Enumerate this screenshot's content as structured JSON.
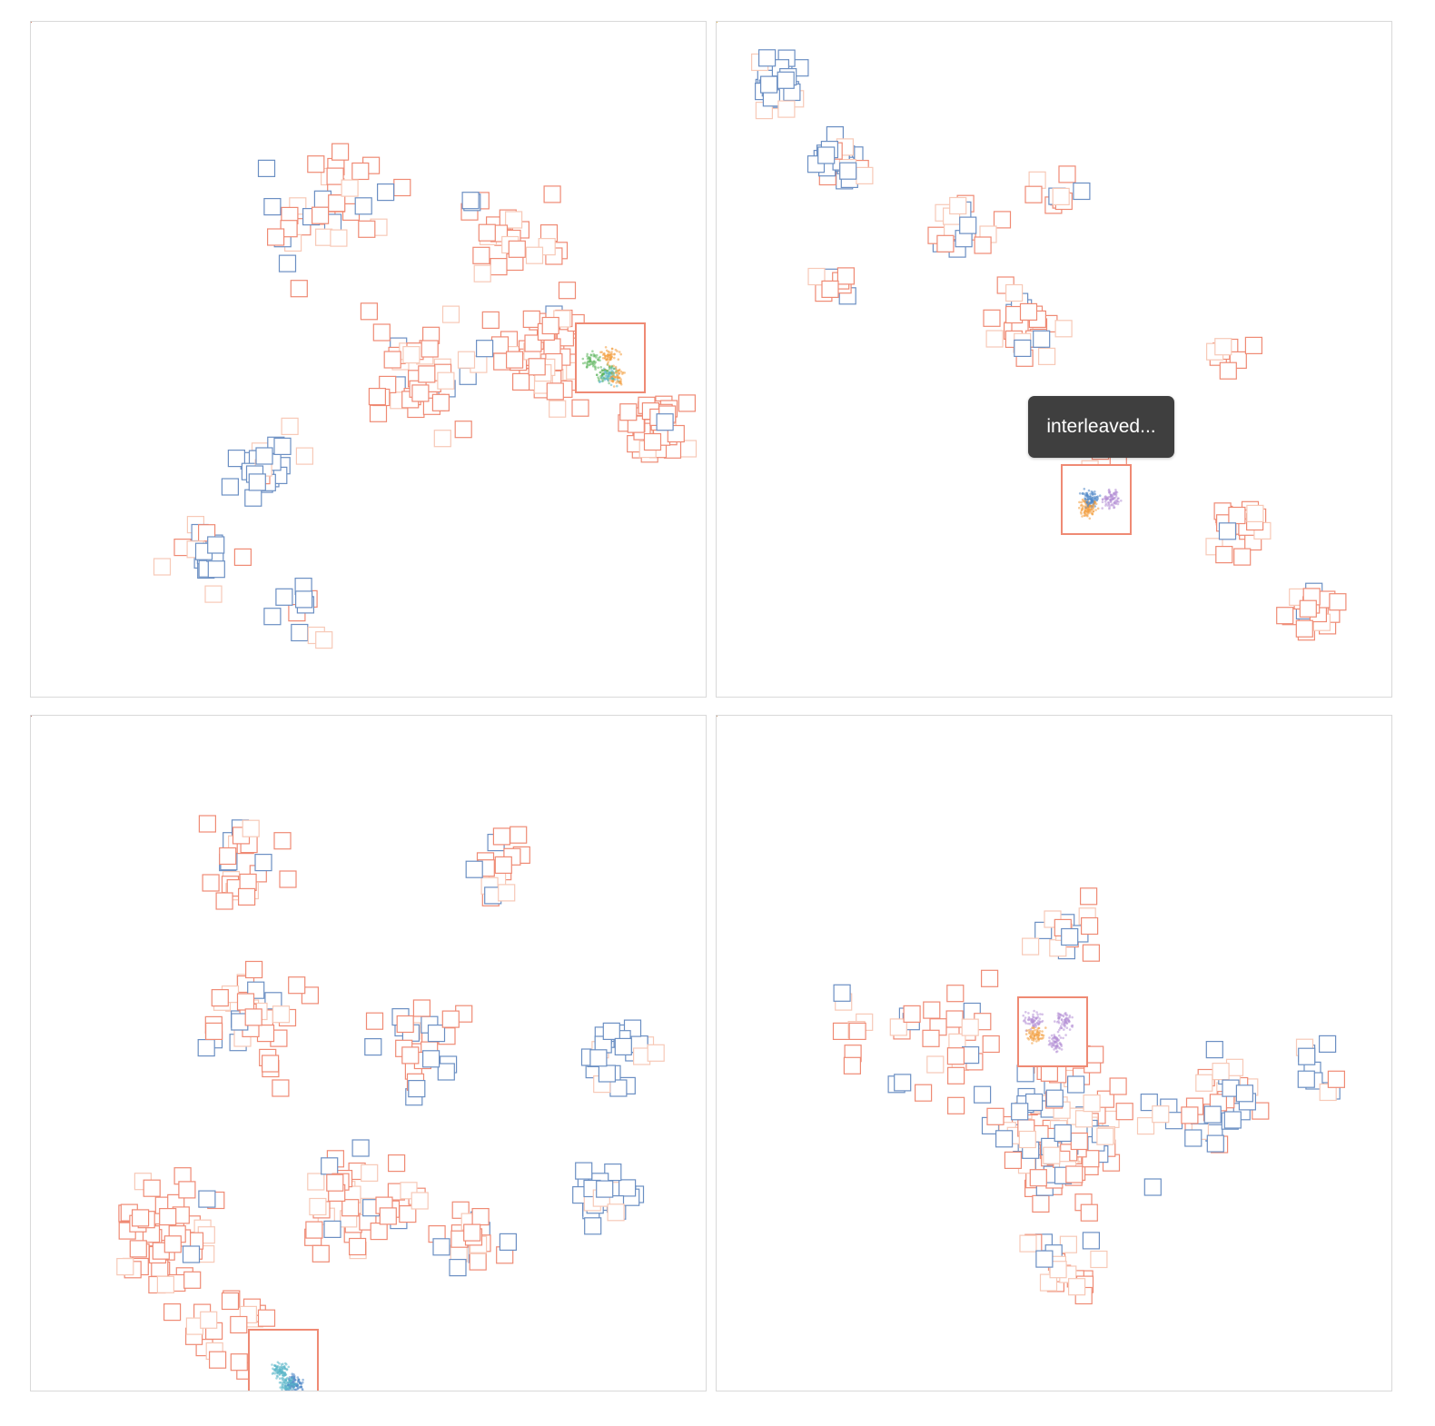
{
  "tooltip": {
    "text": "interleaved..."
  },
  "colors": {
    "outline_red": "#ef8a74",
    "outline_blue": "#6b8fc3",
    "outline_faint": "#f7c9b7",
    "dot_palette": [
      "#4f86c6",
      "#f29c3c",
      "#5bb55b",
      "#d9547a",
      "#b590d6",
      "#888888",
      "#e6c34a",
      "#59b6c9"
    ]
  },
  "panels": [
    {
      "id": "panel-top-left"
    },
    {
      "id": "panel-top-right"
    },
    {
      "id": "panel-bottom-left"
    },
    {
      "id": "panel-bottom-right"
    }
  ]
}
